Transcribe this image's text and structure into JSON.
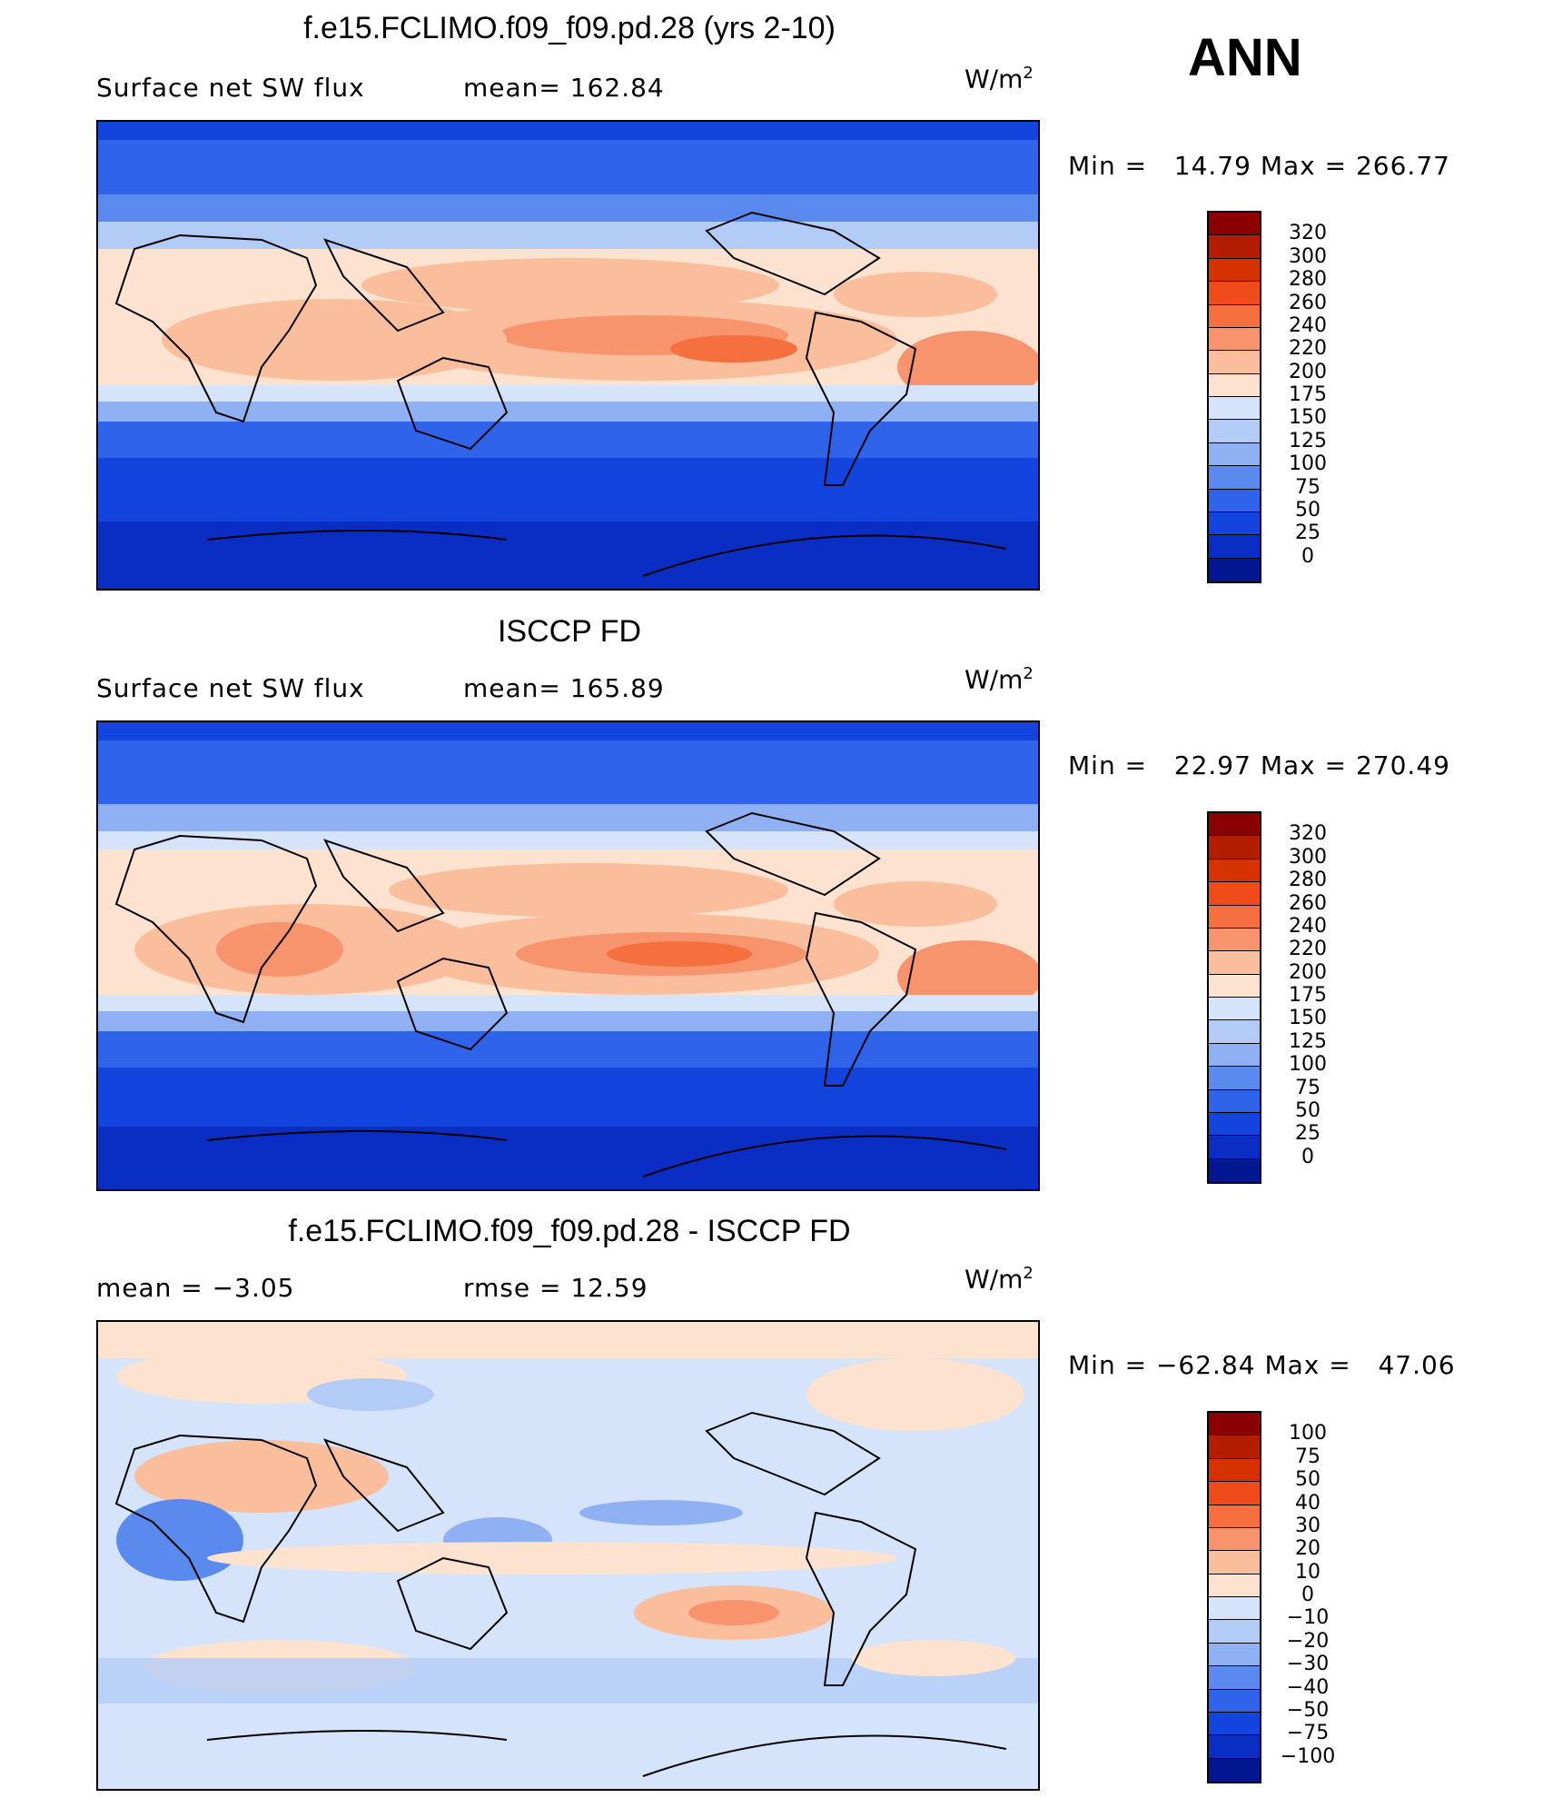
{
  "ann_label": "ANN",
  "panels": [
    {
      "id": "model",
      "title": "f.e15.FCLIMO.f09_f09.pd.28 (yrs 2-10)",
      "left_label": "Surface net SW flux",
      "mid_label": "mean= 162.84",
      "units_base": "W/m",
      "units_exp": "2",
      "min_label": "Min =",
      "min_value": "14.79",
      "max_label": "Max =",
      "max_value": "266.77",
      "colorbar": {
        "levels": [
          "320",
          "300",
          "280",
          "260",
          "240",
          "220",
          "200",
          "175",
          "150",
          "125",
          "100",
          "75",
          "50",
          "25",
          "0"
        ],
        "colors": [
          "#8b0000",
          "#b31e00",
          "#d63200",
          "#f04b1a",
          "#f56f3f",
          "#f7946d",
          "#fbbe9d",
          "#fde3cf",
          "#d5e4fa",
          "#b3ccf7",
          "#8fb0f3",
          "#5b8aee",
          "#2f63ea",
          "#1444de",
          "#0a2dc4",
          "#031790"
        ]
      }
    },
    {
      "id": "obs",
      "title": "ISCCP FD",
      "left_label": "Surface net SW flux",
      "mid_label": "mean= 165.89",
      "units_base": "W/m",
      "units_exp": "2",
      "min_label": "Min =",
      "min_value": "22.97",
      "max_label": "Max =",
      "max_value": "270.49",
      "colorbar": {
        "levels": [
          "320",
          "300",
          "280",
          "260",
          "240",
          "220",
          "200",
          "175",
          "150",
          "125",
          "100",
          "75",
          "50",
          "25",
          "0"
        ],
        "colors": [
          "#8b0000",
          "#b31e00",
          "#d63200",
          "#f04b1a",
          "#f56f3f",
          "#f7946d",
          "#fbbe9d",
          "#fde3cf",
          "#d5e4fa",
          "#b3ccf7",
          "#8fb0f3",
          "#5b8aee",
          "#2f63ea",
          "#1444de",
          "#0a2dc4",
          "#031790"
        ]
      }
    },
    {
      "id": "diff",
      "title": "f.e15.FCLIMO.f09_f09.pd.28 - ISCCP FD",
      "left_label": "mean =   −3.05",
      "mid_label": "rmse =   12.59",
      "units_base": "W/m",
      "units_exp": "2",
      "min_label": "Min =",
      "min_value": "−62.84",
      "max_label": "Max =",
      "max_value": "47.06",
      "colorbar": {
        "levels": [
          "100",
          "75",
          "50",
          "40",
          "30",
          "20",
          "10",
          "0",
          "−10",
          "−20",
          "−30",
          "−40",
          "−50",
          "−75",
          "−100"
        ],
        "colors": [
          "#8b0000",
          "#b31e00",
          "#d63200",
          "#f04b1a",
          "#f56f3f",
          "#f7946d",
          "#fbbe9d",
          "#fde3cf",
          "#d5e4fa",
          "#b3ccf7",
          "#8fb0f3",
          "#5b8aee",
          "#2f63ea",
          "#1444de",
          "#0a2dc4",
          "#031790"
        ]
      }
    }
  ],
  "chart_data": [
    {
      "type": "heatmap",
      "title": "f.e15.FCLIMO.f09_f09.pd.28 (yrs 2-10)",
      "variable": "Surface net SW flux",
      "units": "W/m2",
      "mean": 162.84,
      "min": 14.79,
      "max": 266.77,
      "contour_levels": [
        0,
        25,
        50,
        75,
        100,
        125,
        150,
        175,
        200,
        220,
        240,
        260,
        280,
        300,
        320
      ]
    },
    {
      "type": "heatmap",
      "title": "ISCCP FD",
      "variable": "Surface net SW flux",
      "units": "W/m2",
      "mean": 165.89,
      "min": 22.97,
      "max": 270.49,
      "contour_levels": [
        0,
        25,
        50,
        75,
        100,
        125,
        150,
        175,
        200,
        220,
        240,
        260,
        280,
        300,
        320
      ]
    },
    {
      "type": "heatmap",
      "title": "f.e15.FCLIMO.f09_f09.pd.28 - ISCCP FD",
      "units": "W/m2",
      "mean": -3.05,
      "rmse": 12.59,
      "min": -62.84,
      "max": 47.06,
      "contour_levels": [
        -100,
        -75,
        -50,
        -40,
        -30,
        -20,
        -10,
        0,
        10,
        20,
        30,
        40,
        50,
        75,
        100
      ]
    }
  ]
}
